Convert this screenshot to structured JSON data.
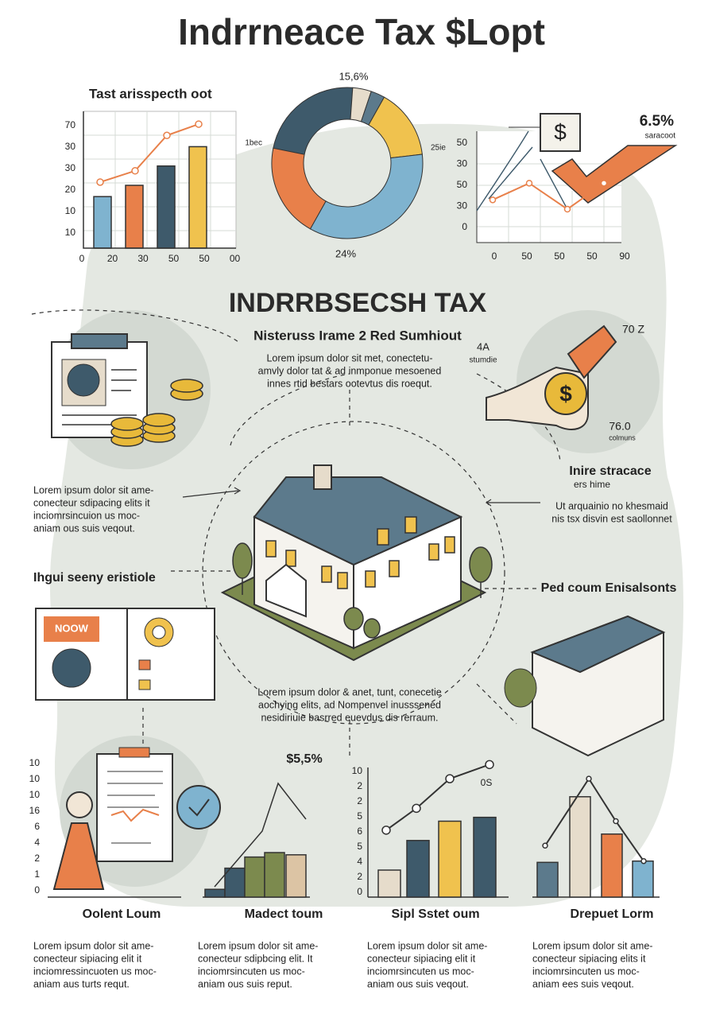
{
  "title": "Indrrneace Tax $Lopt",
  "chart_1": {
    "title": "Tast arisspecth oot",
    "y_labels": [
      "70",
      "30",
      "30",
      "20",
      "10",
      "10"
    ],
    "x_labels": [
      "0",
      "20",
      "30",
      "50",
      "50",
      "00"
    ],
    "ylim": [
      0,
      80
    ],
    "bars": {
      "values": [
        32,
        39,
        51,
        63
      ],
      "colors": [
        "#7fb3cf",
        "#e8804a",
        "#3e5a6b",
        "#f0c24e"
      ]
    },
    "line": {
      "values": [
        41,
        48,
        70,
        77
      ],
      "color": "#e8804a"
    }
  },
  "donut": {
    "labels": {
      "top": "15,6%",
      "left": "1bec",
      "right": "25ie",
      "bottom": "24%"
    },
    "values": [
      23,
      4,
      3,
      15,
      35,
      20
    ],
    "colors": [
      "#3e5a6b",
      "#e6dccb",
      "#5c7a8c",
      "#f0c24e",
      "#7fb3cf",
      "#e8804a"
    ]
  },
  "chart_3": {
    "icon": "$",
    "value": "6.5%",
    "caption": "saracoot",
    "y_labels": [
      "50",
      "30",
      "50",
      "30",
      "0"
    ],
    "x_labels": [
      "0",
      "50",
      "50",
      "50",
      "90"
    ],
    "ylim": [
      0,
      60
    ],
    "line": {
      "values": [
        23,
        32,
        18,
        32
      ],
      "color": "#e8804a"
    }
  },
  "heading": "INDRRBSECSH TAX",
  "subheading": "Nisteruss Irame 2 Red Sumhiout",
  "intro": [
    "Lorem ipsum dolor sit met, conectetu-",
    "amvly dolor tat & ad inmponue mesoened",
    "innes rtid bestars ootevtus dis roequt."
  ],
  "hand_labels": {
    "a": "4A",
    "a_caption": "stumdie",
    "b": "70 Z",
    "c": "76.0",
    "c_caption": "colmuns"
  },
  "left_text": [
    "Lorem ipsum dolor sit ame-",
    "conecteur sdipacing elits it",
    "inciomrsincuion us moc-",
    "aniam ous suis veqout."
  ],
  "right_title": "Inire stracace",
  "right_subtitle": "ers hime",
  "right_text": [
    "Ut arquainio no khesmaid",
    "nis tsx disvin est saollonnet"
  ],
  "left_label": "Ihgui seeny eristiole",
  "book_tag": "NOOW",
  "right_label": "Ped coum Enisalsonts",
  "center_text": [
    "Lorem ipsum dolor & anet, tunt, conecetie",
    "aochying elits, ad Nompenvel inusssened",
    "nesidiriuie basrred euevdus dis rerraum."
  ],
  "bottom_left_y_labels": [
    "10",
    "10",
    "10",
    "16",
    "6",
    "4",
    "2",
    "1",
    "0"
  ],
  "bottom_chart_a": {
    "value": "$5,5%",
    "ylim": [
      0,
      100
    ],
    "values": [
      7,
      26,
      36,
      40,
      38
    ],
    "colors": [
      "#3e5a6b",
      "#3e5a6b",
      "#7c8a4e",
      "#7c8a4e",
      "#dcc4a4"
    ]
  },
  "bottom_chart_b": {
    "y_labels": [
      "10",
      "2",
      "2",
      "5",
      "6",
      "5",
      "4",
      "2",
      "0"
    ],
    "note": "0S",
    "ylim": [
      0,
      110
    ],
    "values": [
      21,
      44,
      59,
      62
    ],
    "colors": [
      "#e6dccb",
      "#3e5a6b",
      "#f0c24e",
      "#3e5a6b"
    ],
    "line": [
      52,
      69,
      92,
      103
    ]
  },
  "bottom_chart_c": {
    "ylim": [
      0,
      110
    ],
    "values": [
      27,
      78,
      49,
      28
    ],
    "colors": [
      "#5c7a8c",
      "#e6dccb",
      "#e8804a",
      "#7fb3cf"
    ],
    "line": [
      40,
      92,
      59,
      28
    ]
  },
  "columns": [
    {
      "title": "Oolent Loum",
      "text": [
        "Lorem ipsum dolor sit ame-",
        "conecteur sipiacing elit it",
        "inciomressincuoten us moc-",
        "aniam aus turts requt."
      ]
    },
    {
      "title": "Madect toum",
      "text": [
        "Lorem ipsum dolor sit ame-",
        "conecteur sdipbcing elit. It",
        "inciomrsincuten us moc-",
        "aniam ous suis reput."
      ]
    },
    {
      "title": "Sipl Sstet oum",
      "text": [
        "Lorem ipsum dolor sit ame-",
        "conecteur sipiacing elit it",
        "inciomrsincuten us moc-",
        "aniam ous suis veqout."
      ]
    },
    {
      "title": "Drepuet Lorm",
      "text": [
        "Lorem ipsum dolor sit ame-",
        "conecteur sipiacing elits it",
        "inciomrsincuten us moc-",
        "aniam ees suis veqout."
      ]
    }
  ]
}
